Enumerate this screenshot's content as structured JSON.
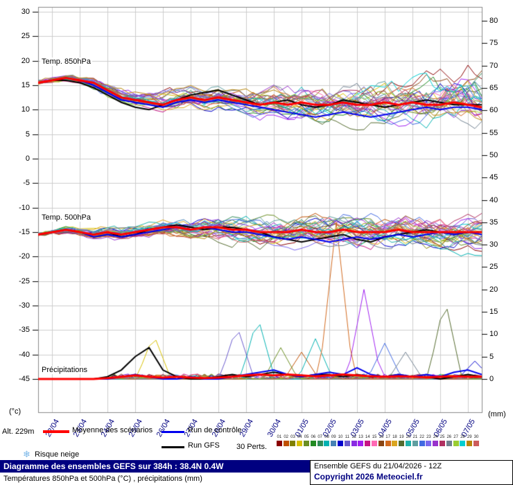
{
  "labels": {
    "alt": "Alt. 229m",
    "left_unit": "(°c)",
    "right_unit": "(mm)"
  },
  "panels_text": {
    "t850": "Temp. 850hPa",
    "t500": "Temp. 500hPa",
    "precip": "Précipitations"
  },
  "legend": {
    "mean": "Moyenne des scénarios",
    "control": "Run de contrôle",
    "gfs": "Run GFS",
    "perts": "30 Perts.",
    "snow": "Risque neige",
    "snow_icon": "❄",
    "snow_icon_color": "#79b6e8"
  },
  "footer": {
    "title": "Diagramme des ensembles GEFS sur 384h : 38.4N 0.4W",
    "subtitle": "Températures 850hPa et 500hPa (°C) , précipitations (mm)",
    "run_info": "Ensemble GEFS du 21/04/2026 - 12Z",
    "copyright": "Copyright 2026 Meteociel.fr",
    "title_bg": "#000080"
  },
  "chart_data": {
    "type": "line",
    "title": "Diagramme des ensembles GEFS sur 384h : 38.4N 0.4W",
    "x_hours_step": 12,
    "x_hours_max": 384,
    "x_day_labels": [
      "22/04",
      "23/04",
      "24/04",
      "25/04",
      "26/04",
      "27/04",
      "28/04",
      "29/04",
      "30/04",
      "01/05",
      "02/05",
      "03/05",
      "04/05",
      "05/05",
      "06/05",
      "07/05"
    ],
    "left_axis": {
      "unit": "(°c)",
      "max": 30,
      "min": -45,
      "ticks": [
        30,
        25,
        20,
        15,
        10,
        5,
        0,
        -5,
        -10,
        -15,
        -20,
        -25,
        -30,
        -35,
        -40,
        -45
      ]
    },
    "right_axis": {
      "unit": "(mm)",
      "max": 80,
      "min": 0,
      "ticks": [
        80,
        75,
        70,
        65,
        60,
        55,
        50,
        45,
        40,
        35,
        30,
        25,
        20,
        15,
        10,
        5,
        0
      ]
    },
    "line_styles": {
      "mean_color": "#ff0000",
      "control_color": "#0000ee",
      "gfs_color": "#000000"
    },
    "member_colors": [
      "#8b0000",
      "#c05000",
      "#808000",
      "#d8c000",
      "#6b8e23",
      "#228b22",
      "#2e8b57",
      "#00b2b2",
      "#4682b4",
      "#0000cd",
      "#6a5acd",
      "#8a2be2",
      "#a020f0",
      "#c71585",
      "#ff69b4",
      "#8b4513",
      "#d2691e",
      "#daa520",
      "#556b2f",
      "#20b2aa",
      "#5f9ea0",
      "#4169e1",
      "#7b68ee",
      "#9932cc",
      "#b03060",
      "#708090",
      "#9acd32",
      "#00ced1",
      "#b8860b",
      "#cd5c5c"
    ],
    "panels": {
      "t850": {
        "label": "Temp. 850hPa",
        "mean": [
          15.5,
          16,
          16.5,
          16,
          15.5,
          14,
          12.5,
          12,
          11.5,
          11,
          12,
          12.5,
          12,
          12.5,
          12,
          11.5,
          11,
          11.5,
          11,
          11.5,
          11,
          11,
          11.5,
          11,
          11,
          11.5,
          11,
          11.5,
          11,
          11,
          11.5,
          11,
          10.5
        ],
        "control": [
          15.5,
          16,
          16.5,
          16,
          15,
          13.5,
          12,
          11.5,
          11,
          10.5,
          11.5,
          12,
          11.5,
          12,
          11.5,
          11,
          10.5,
          10,
          9.5,
          9,
          8.5,
          9,
          9.5,
          9,
          8.5,
          9,
          9.5,
          10,
          10.5,
          10,
          10.5,
          10.5,
          10
        ],
        "gfs": [
          15.5,
          16,
          16,
          15.5,
          14.5,
          13,
          11.5,
          10.5,
          10,
          11,
          12,
          13,
          13.5,
          14,
          13,
          12,
          11,
          11.5,
          12,
          11,
          10.5,
          11,
          12,
          11.5,
          11,
          10.5,
          11,
          11.5,
          12,
          11.5,
          11,
          11,
          11
        ],
        "spread_min": [
          15,
          15.5,
          15.5,
          15,
          13.5,
          12,
          10.5,
          10,
          9.5,
          9,
          9.5,
          10,
          9.5,
          10,
          9,
          8.5,
          8,
          8,
          7.5,
          7,
          6.5,
          6,
          6.5,
          6,
          5.5,
          5,
          5.5,
          5,
          5.5,
          5,
          5.5,
          5,
          5
        ],
        "spread_max": [
          16.5,
          17,
          17.5,
          17,
          16.5,
          15.5,
          14.5,
          14,
          14,
          14.5,
          15,
          15.5,
          15,
          15.5,
          15,
          15,
          15.5,
          16,
          16,
          16.5,
          16,
          16,
          16.5,
          17,
          17,
          17.5,
          18,
          18,
          18.5,
          19,
          19.5,
          20,
          20
        ]
      },
      "t500": {
        "label": "Temp. 500hPa",
        "mean": [
          -15.5,
          -15,
          -14.5,
          -15,
          -15.5,
          -15,
          -15.5,
          -15,
          -14.5,
          -14,
          -14,
          -14.5,
          -14,
          -14,
          -14.5,
          -14.5,
          -15,
          -15,
          -15,
          -14.5,
          -15,
          -15,
          -14.5,
          -15,
          -15,
          -15,
          -14.5,
          -15,
          -15,
          -15,
          -15,
          -15,
          -15
        ],
        "control": [
          -15.5,
          -15,
          -14.5,
          -15,
          -16,
          -15.5,
          -16,
          -15.5,
          -15,
          -14.5,
          -14,
          -14.5,
          -14,
          -14.5,
          -15,
          -15,
          -15.5,
          -16,
          -16.5,
          -16,
          -16.5,
          -17,
          -16.5,
          -16,
          -16.5,
          -16,
          -15.5,
          -16,
          -15.5,
          -15,
          -15.5,
          -15,
          -15.5
        ],
        "gfs": [
          -15.5,
          -15,
          -14.5,
          -15,
          -15.5,
          -15,
          -16,
          -15.5,
          -14.5,
          -14,
          -13.5,
          -14,
          -14.5,
          -14,
          -14,
          -14.5,
          -15,
          -16,
          -16.5,
          -17,
          -16.5,
          -16,
          -15.5,
          -16.5,
          -17,
          -16,
          -15.5,
          -15,
          -14.5,
          -15,
          -15.5,
          -15,
          -15
        ],
        "spread_min": [
          -16,
          -15.5,
          -15.5,
          -16,
          -16.5,
          -16,
          -17,
          -16.5,
          -16,
          -16,
          -16.5,
          -17,
          -17,
          -17.5,
          -18,
          -18,
          -18.5,
          -19,
          -19,
          -18.5,
          -19,
          -19.5,
          -19,
          -19.5,
          -20,
          -19.5,
          -19,
          -19.5,
          -20,
          -19.5,
          -20,
          -19.5,
          -20
        ],
        "spread_max": [
          -15,
          -14.5,
          -13.5,
          -14,
          -14,
          -13.5,
          -13.5,
          -13,
          -12.5,
          -12,
          -12,
          -12,
          -11.5,
          -11.5,
          -11,
          -11,
          -11,
          -11,
          -10.5,
          -10.5,
          -10,
          -10,
          -10,
          -10,
          -10,
          -10,
          -10,
          -10,
          -10,
          -10,
          -10,
          -10,
          -10
        ]
      },
      "precip": {
        "label": "Précipitations",
        "mean": [
          0,
          0,
          0,
          0,
          0,
          0.2,
          0.5,
          0.8,
          0.5,
          0.3,
          0.5,
          0.3,
          0.2,
          0.3,
          0.5,
          0.8,
          1,
          0.8,
          1,
          0.8,
          0.6,
          0.8,
          1,
          0.8,
          0.6,
          0.5,
          0.6,
          0.5,
          0.4,
          0.5,
          0.6,
          0.5,
          0.5
        ],
        "control": [
          0,
          0,
          0,
          0,
          0,
          0,
          0.5,
          1,
          0.5,
          0,
          0,
          0.5,
          0,
          0,
          0.5,
          1,
          1.5,
          2,
          1,
          0.5,
          1,
          1.5,
          1,
          2.5,
          1,
          0.5,
          1,
          0.5,
          1,
          0.5,
          1.5,
          2,
          1
        ],
        "gfs": [
          0,
          0,
          0,
          0,
          0,
          0.5,
          2,
          5,
          7,
          2,
          0.5,
          0,
          0,
          0.5,
          1,
          0.5,
          1,
          1.5,
          1,
          0.5,
          1,
          1,
          0.5,
          1,
          0.5,
          0.5,
          1,
          0.5,
          0.5,
          0,
          0.5,
          1,
          0.5
        ],
        "member_spikes": [
          {
            "member": 3,
            "hour": 100,
            "peak": 10
          },
          {
            "member": 16,
            "hour": 258,
            "peak": 35
          },
          {
            "member": 12,
            "hour": 282,
            "peak": 20
          },
          {
            "member": 18,
            "hour": 352,
            "peak": 18
          },
          {
            "member": 10,
            "hour": 172,
            "peak": 12
          },
          {
            "member": 7,
            "hour": 190,
            "peak": 14
          },
          {
            "member": 4,
            "hour": 210,
            "peak": 7
          },
          {
            "member": 7,
            "hour": 240,
            "peak": 9
          },
          {
            "member": 1,
            "hour": 228,
            "peak": 6
          },
          {
            "member": 21,
            "hour": 300,
            "peak": 8
          },
          {
            "member": 25,
            "hour": 318,
            "peak": 6
          },
          {
            "member": 9,
            "hour": 378,
            "peak": 4
          }
        ]
      }
    }
  }
}
